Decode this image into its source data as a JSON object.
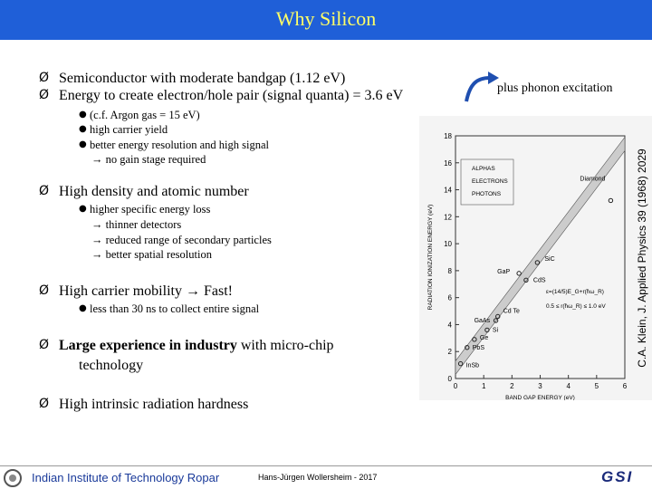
{
  "header": {
    "title": "Why Silicon"
  },
  "bullets": [
    {
      "text": "Semiconductor with moderate bandgap (1.12 eV)"
    },
    {
      "text": "Energy to create electron/hole pair (signal quanta) = 3.6 eV",
      "sub": [
        "(c.f. Argon gas = 15 eV)",
        "high carrier yield",
        "better energy resolution and high signal",
        "→ no gain stage required"
      ]
    },
    {
      "text": "High density and atomic number",
      "sub": [
        "higher specific energy loss",
        "→ thinner detectors",
        "→ reduced range of secondary particles",
        "→ better spatial resolution"
      ]
    },
    {
      "text": "High carrier mobility → Fast!",
      "sub": [
        "less than 30 ns to collect entire signal"
      ]
    },
    {
      "bold": "Large experience in industry",
      "text": " with micro-chip",
      "text2": "technology"
    },
    {
      "text": "High intrinsic radiation hardness"
    }
  ],
  "note": "plus phonon excitation",
  "figure": {
    "y_label": "RADIATION IONIZATION ENERGY (eV)",
    "x_label": "BAND GAP ENERGY (eV)",
    "xticks": [
      "0",
      "1",
      "2",
      "3",
      "4",
      "5",
      "6"
    ],
    "yticks": [
      "0",
      "2",
      "4",
      "6",
      "8",
      "10",
      "12",
      "14",
      "16",
      "18"
    ],
    "legend": [
      "ALPHAS",
      "ELECTRONS",
      "PHOTONS"
    ],
    "materials": [
      "Diamond",
      "SiC",
      "GaP",
      "CdS",
      "Cd Te",
      "GaAs",
      "Si",
      "Ge",
      "PbS",
      "InSb"
    ],
    "formula1": "ε=(14/5)E_G+r(ħω_R)",
    "formula2": "0.5 ≤ r(ħω_R) ≤ 1.0 eV",
    "citation": "C.A. Klein, J. Applied Physics 39 (1968) 2029"
  },
  "footer": {
    "institute": "Indian Institute of Technology Ropar",
    "author": "Hans-Jürgen Wollersheim - 2017",
    "logo": "GSI"
  }
}
